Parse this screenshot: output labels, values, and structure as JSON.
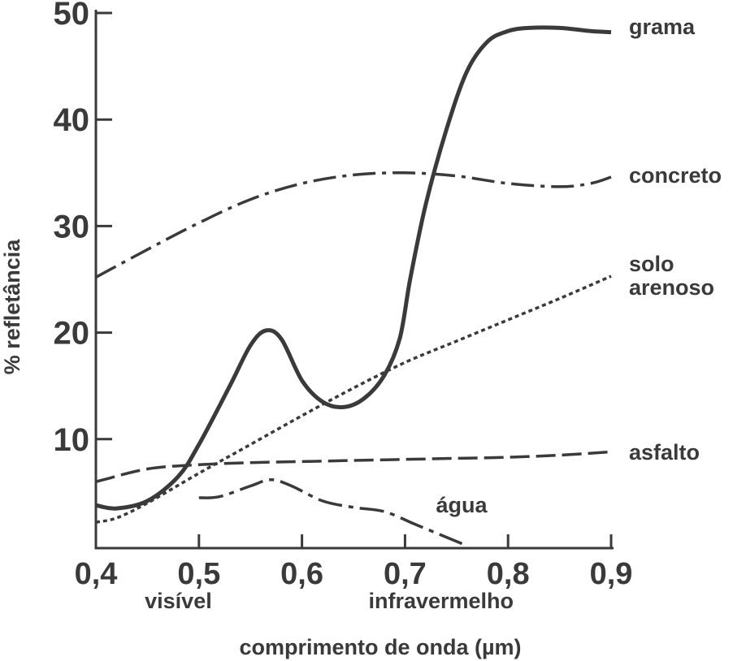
{
  "chart_data": {
    "type": "line",
    "title": "",
    "xlabel": "comprimento de onda (µm)",
    "ylabel": "% refletância",
    "xlim": [
      0.4,
      0.9
    ],
    "ylim": [
      0,
      50
    ],
    "xticks": [
      "0,4",
      "0,5",
      "0,6",
      "0,7",
      "0,8",
      "0,9"
    ],
    "yticks": [
      "10",
      "20",
      "30",
      "40",
      "50"
    ],
    "x_sublabels": [
      {
        "text": "visível",
        "at": 0.48
      },
      {
        "text": "infravermelho",
        "at": 0.735
      }
    ],
    "grid": false,
    "legend": "inline labels at right end of lines",
    "series": [
      {
        "name": "grama",
        "style": "solid",
        "x": [
          0.4,
          0.42,
          0.45,
          0.48,
          0.5,
          0.53,
          0.55,
          0.565,
          0.58,
          0.6,
          0.62,
          0.64,
          0.66,
          0.68,
          0.695,
          0.705,
          0.72,
          0.74,
          0.76,
          0.78,
          0.8,
          0.82,
          0.85,
          0.88,
          0.9
        ],
        "y": [
          3.8,
          3.5,
          4.2,
          6.5,
          9.5,
          15.0,
          18.8,
          20.2,
          19.4,
          15.5,
          13.5,
          13.0,
          13.8,
          16.0,
          19.5,
          25.0,
          32.0,
          39.0,
          44.5,
          47.3,
          48.3,
          48.6,
          48.6,
          48.3,
          48.2
        ]
      },
      {
        "name": "concreto",
        "style": "dash-dot",
        "x": [
          0.4,
          0.45,
          0.5,
          0.55,
          0.6,
          0.65,
          0.7,
          0.75,
          0.8,
          0.85,
          0.88,
          0.9
        ],
        "y": [
          25.2,
          27.8,
          30.3,
          32.5,
          34.0,
          34.8,
          35.0,
          34.7,
          34.0,
          33.7,
          34.0,
          34.6
        ]
      },
      {
        "name": "solo arenoso",
        "style": "dotted",
        "x": [
          0.4,
          0.42,
          0.45,
          0.5,
          0.55,
          0.6,
          0.65,
          0.7,
          0.75,
          0.8,
          0.85,
          0.9
        ],
        "y": [
          2.2,
          2.6,
          4.0,
          6.8,
          9.5,
          12.2,
          14.8,
          17.2,
          19.2,
          21.2,
          23.2,
          25.3
        ]
      },
      {
        "name": "asfalto",
        "style": "dashed",
        "x": [
          0.4,
          0.45,
          0.5,
          0.55,
          0.6,
          0.65,
          0.7,
          0.75,
          0.8,
          0.85,
          0.9
        ],
        "y": [
          6.0,
          7.2,
          7.6,
          7.8,
          7.9,
          8.0,
          8.1,
          8.2,
          8.3,
          8.5,
          8.8
        ]
      },
      {
        "name": "água",
        "style": "long-dash-dot",
        "x": [
          0.5,
          0.52,
          0.55,
          0.57,
          0.59,
          0.62,
          0.65,
          0.68,
          0.71,
          0.74,
          0.76
        ],
        "y": [
          4.5,
          4.6,
          5.6,
          6.2,
          5.6,
          4.2,
          3.6,
          3.2,
          2.0,
          0.8,
          0.0
        ]
      }
    ]
  }
}
